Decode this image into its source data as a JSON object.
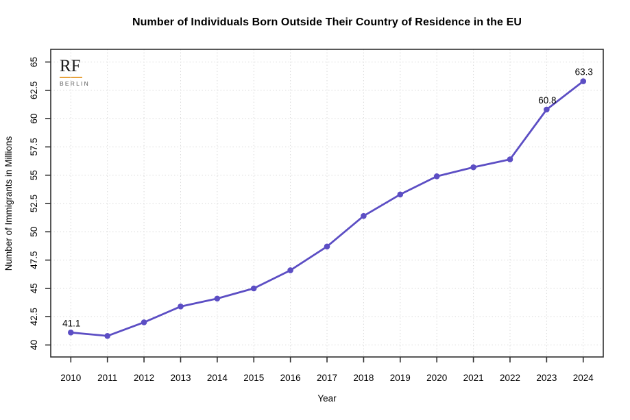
{
  "logo": {
    "text": "RF",
    "subtext": "BERLIN",
    "accent_color": "#e8a23c"
  },
  "chart_data": {
    "type": "line",
    "title": "Number of Individuals Born Outside Their Country of Residence in the EU",
    "xlabel": "Year",
    "ylabel": "Number of Immigrants in Millions",
    "x": [
      2010,
      2011,
      2012,
      2013,
      2014,
      2015,
      2016,
      2017,
      2018,
      2019,
      2020,
      2021,
      2022,
      2023,
      2024
    ],
    "values": [
      41.1,
      40.8,
      42.0,
      43.4,
      44.1,
      45.0,
      46.6,
      48.7,
      51.4,
      53.3,
      54.9,
      55.7,
      56.4,
      60.8,
      63.3
    ],
    "ylim": [
      40,
      65
    ],
    "yticks": [
      40,
      42.5,
      45,
      47.5,
      50,
      52.5,
      55,
      57.5,
      60,
      62.5,
      65
    ],
    "grid": true,
    "legend_position": "none",
    "line_color": "#5c4ec4",
    "grid_color": "#d9d9d9",
    "axis_color": "#2e2e2e",
    "annotations": [
      {
        "x": 2010,
        "label": "41.1"
      },
      {
        "x": 2023,
        "label": "60.8"
      },
      {
        "x": 2024,
        "label": "63.3"
      }
    ]
  }
}
